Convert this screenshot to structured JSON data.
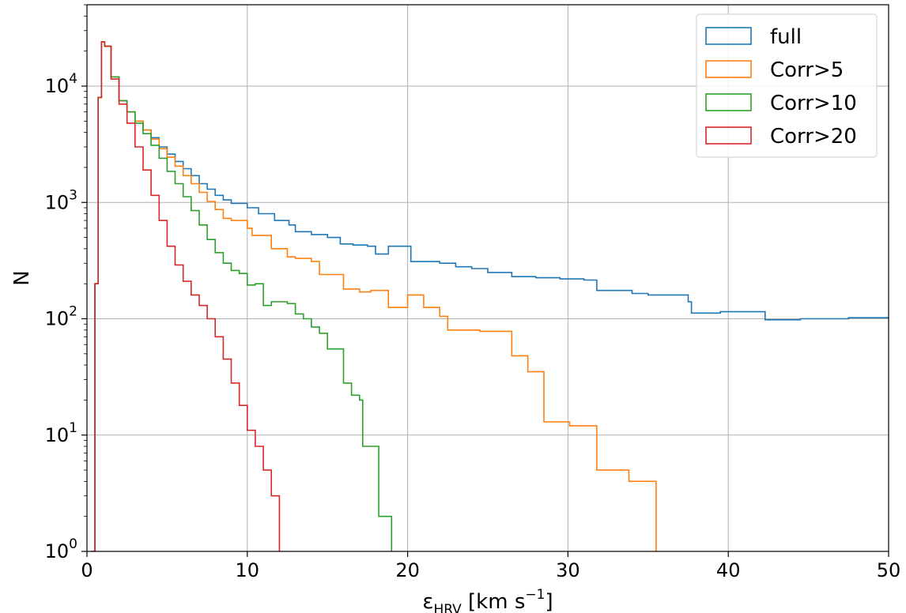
{
  "chart_data": {
    "type": "line",
    "xlabel": "εHRV [km s⁻¹]",
    "ylabel": "N",
    "xlim": [
      0,
      50
    ],
    "ylim": [
      1,
      50000
    ],
    "yscale": "log",
    "grid": true,
    "legend_position": "top-right",
    "x_ticks": [
      "0",
      "10",
      "20",
      "30",
      "40",
      "50"
    ],
    "y_ticks": [
      {
        "base": "10",
        "exp": "0"
      },
      {
        "base": "10",
        "exp": "1"
      },
      {
        "base": "10",
        "exp": "2"
      },
      {
        "base": "10",
        "exp": "3"
      },
      {
        "base": "10",
        "exp": "4"
      }
    ],
    "series": [
      {
        "name": "full",
        "color": "#1f77b4",
        "points": [
          [
            0.3,
            1
          ],
          [
            0.5,
            200
          ],
          [
            0.7,
            8000
          ],
          [
            0.9,
            24000
          ],
          [
            1.1,
            22000
          ],
          [
            1.5,
            12000
          ],
          [
            2.0,
            7500
          ],
          [
            2.5,
            6000
          ],
          [
            3.0,
            5000
          ],
          [
            3.5,
            4200
          ],
          [
            4.0,
            3600
          ],
          [
            4.5,
            3000
          ],
          [
            5.0,
            2600
          ],
          [
            5.5,
            2250
          ],
          [
            6.0,
            1950
          ],
          [
            6.5,
            1700
          ],
          [
            7.0,
            1450
          ],
          [
            7.5,
            1300
          ],
          [
            8.0,
            1150
          ],
          [
            8.5,
            1050
          ],
          [
            9.0,
            980
          ],
          [
            10.0,
            900
          ],
          [
            10.7,
            800
          ],
          [
            11.7,
            700
          ],
          [
            12.6,
            640
          ],
          [
            13.0,
            560
          ],
          [
            14.0,
            530
          ],
          [
            15.0,
            500
          ],
          [
            15.8,
            440
          ],
          [
            16.6,
            430
          ],
          [
            17.5,
            420
          ],
          [
            18.0,
            360
          ],
          [
            18.8,
            420
          ],
          [
            20.0,
            420
          ],
          [
            20.2,
            310
          ],
          [
            22.0,
            300
          ],
          [
            23.0,
            280
          ],
          [
            24.0,
            270
          ],
          [
            25.0,
            250
          ],
          [
            26.5,
            230
          ],
          [
            28.0,
            225
          ],
          [
            29.5,
            220
          ],
          [
            31.0,
            215
          ],
          [
            31.8,
            175
          ],
          [
            34.0,
            165
          ],
          [
            35.0,
            160
          ],
          [
            37.5,
            140
          ],
          [
            37.7,
            112
          ],
          [
            38.0,
            112
          ],
          [
            39.5,
            115
          ],
          [
            40.0,
            115
          ],
          [
            42.3,
            98
          ],
          [
            43.0,
            98
          ],
          [
            44.5,
            100
          ],
          [
            46.0,
            100
          ],
          [
            47.5,
            102
          ],
          [
            50,
            102
          ]
        ]
      },
      {
        "name": "Corr>5",
        "color": "#ff7f0e",
        "points": [
          [
            0.3,
            1
          ],
          [
            0.5,
            200
          ],
          [
            0.7,
            8000
          ],
          [
            0.9,
            24000
          ],
          [
            1.1,
            22000
          ],
          [
            1.5,
            12000
          ],
          [
            2.0,
            7500
          ],
          [
            2.5,
            6000
          ],
          [
            3.0,
            5000
          ],
          [
            3.5,
            4200
          ],
          [
            4.0,
            3500
          ],
          [
            4.5,
            2900
          ],
          [
            5.0,
            2450
          ],
          [
            5.5,
            2050
          ],
          [
            6.0,
            1700
          ],
          [
            6.5,
            1450
          ],
          [
            7.0,
            1220
          ],
          [
            7.5,
            1020
          ],
          [
            8.0,
            870
          ],
          [
            8.5,
            730
          ],
          [
            9.0,
            700
          ],
          [
            10.0,
            600
          ],
          [
            10.3,
            520
          ],
          [
            11.0,
            520
          ],
          [
            11.5,
            400
          ],
          [
            12.5,
            340
          ],
          [
            13.0,
            330
          ],
          [
            14.0,
            310
          ],
          [
            14.5,
            240
          ],
          [
            15.5,
            240
          ],
          [
            16.0,
            180
          ],
          [
            17.0,
            170
          ],
          [
            17.7,
            175
          ],
          [
            18.0,
            175
          ],
          [
            18.8,
            125
          ],
          [
            19.8,
            125
          ],
          [
            20.0,
            160
          ],
          [
            20.3,
            160
          ],
          [
            21.0,
            125
          ],
          [
            22.0,
            105
          ],
          [
            22.5,
            80
          ],
          [
            24.0,
            80
          ],
          [
            24.5,
            78
          ],
          [
            25.2,
            78
          ],
          [
            26.5,
            48
          ],
          [
            27.5,
            35
          ],
          [
            28.2,
            35
          ],
          [
            28.5,
            13
          ],
          [
            29.5,
            13
          ],
          [
            30.1,
            12
          ],
          [
            31.7,
            12
          ],
          [
            31.8,
            5
          ],
          [
            33.5,
            5
          ],
          [
            33.8,
            4
          ],
          [
            35.5,
            4
          ],
          [
            35.5,
            1
          ]
        ]
      },
      {
        "name": "Corr>10",
        "color": "#2ca02c",
        "points": [
          [
            0.3,
            1
          ],
          [
            0.5,
            200
          ],
          [
            0.7,
            8000
          ],
          [
            0.9,
            24000
          ],
          [
            1.1,
            22000
          ],
          [
            1.5,
            12000
          ],
          [
            2.0,
            7500
          ],
          [
            2.5,
            6000
          ],
          [
            3.0,
            4800
          ],
          [
            3.5,
            3900
          ],
          [
            4.0,
            3100
          ],
          [
            4.5,
            2400
          ],
          [
            5.0,
            1850
          ],
          [
            5.5,
            1450
          ],
          [
            6.0,
            1120
          ],
          [
            6.5,
            850
          ],
          [
            7.0,
            640
          ],
          [
            7.5,
            480
          ],
          [
            8.0,
            370
          ],
          [
            8.5,
            300
          ],
          [
            9.0,
            260
          ],
          [
            9.5,
            245
          ],
          [
            10.0,
            195
          ],
          [
            10.5,
            200
          ],
          [
            11.0,
            130
          ],
          [
            11.5,
            140
          ],
          [
            12.5,
            135
          ],
          [
            13.0,
            110
          ],
          [
            13.5,
            100
          ],
          [
            14.0,
            85
          ],
          [
            14.5,
            75
          ],
          [
            15.0,
            55
          ],
          [
            16.0,
            28
          ],
          [
            16.5,
            22
          ],
          [
            17.0,
            20
          ],
          [
            17.2,
            8
          ],
          [
            18.0,
            8
          ],
          [
            18.2,
            2
          ],
          [
            19.0,
            2
          ],
          [
            19.0,
            1
          ]
        ]
      },
      {
        "name": "Corr>20",
        "color": "#d62728",
        "points": [
          [
            0.3,
            1
          ],
          [
            0.5,
            200
          ],
          [
            0.7,
            8000
          ],
          [
            0.9,
            24000
          ],
          [
            1.1,
            22000
          ],
          [
            1.5,
            11500
          ],
          [
            2.0,
            7000
          ],
          [
            2.5,
            4800
          ],
          [
            3.0,
            3000
          ],
          [
            3.5,
            1900
          ],
          [
            4.0,
            1150
          ],
          [
            4.5,
            700
          ],
          [
            5.0,
            420
          ],
          [
            5.5,
            290
          ],
          [
            6.0,
            210
          ],
          [
            6.5,
            160
          ],
          [
            7.0,
            130
          ],
          [
            7.5,
            100
          ],
          [
            8.0,
            70
          ],
          [
            8.5,
            45
          ],
          [
            9.0,
            28
          ],
          [
            9.5,
            18
          ],
          [
            10.0,
            11
          ],
          [
            10.5,
            8
          ],
          [
            11.0,
            5
          ],
          [
            11.5,
            3
          ],
          [
            12.0,
            3
          ],
          [
            12.0,
            1
          ]
        ]
      }
    ]
  }
}
